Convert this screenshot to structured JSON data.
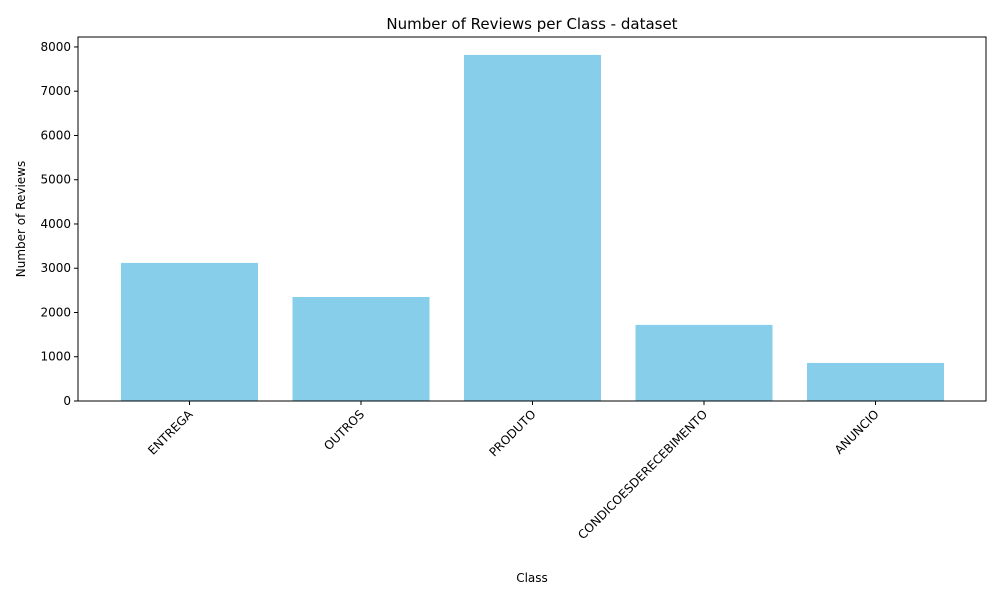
{
  "chart_data": {
    "type": "bar",
    "title": "Number of Reviews per Class - dataset",
    "xlabel": "Class",
    "ylabel": "Number of Reviews",
    "categories": [
      "ENTREGA",
      "OUTROS",
      "PRODUTO",
      "CONDICOESDERECEBIMENTO",
      "ANUNCIO"
    ],
    "values": [
      3120,
      2350,
      7820,
      1720,
      860
    ],
    "ylim": [
      0,
      8225
    ],
    "yticks": [
      0,
      1000,
      2000,
      3000,
      4000,
      5000,
      6000,
      7000,
      8000
    ],
    "bar_color": "#87ceeb",
    "grid": false,
    "legend": "none"
  }
}
